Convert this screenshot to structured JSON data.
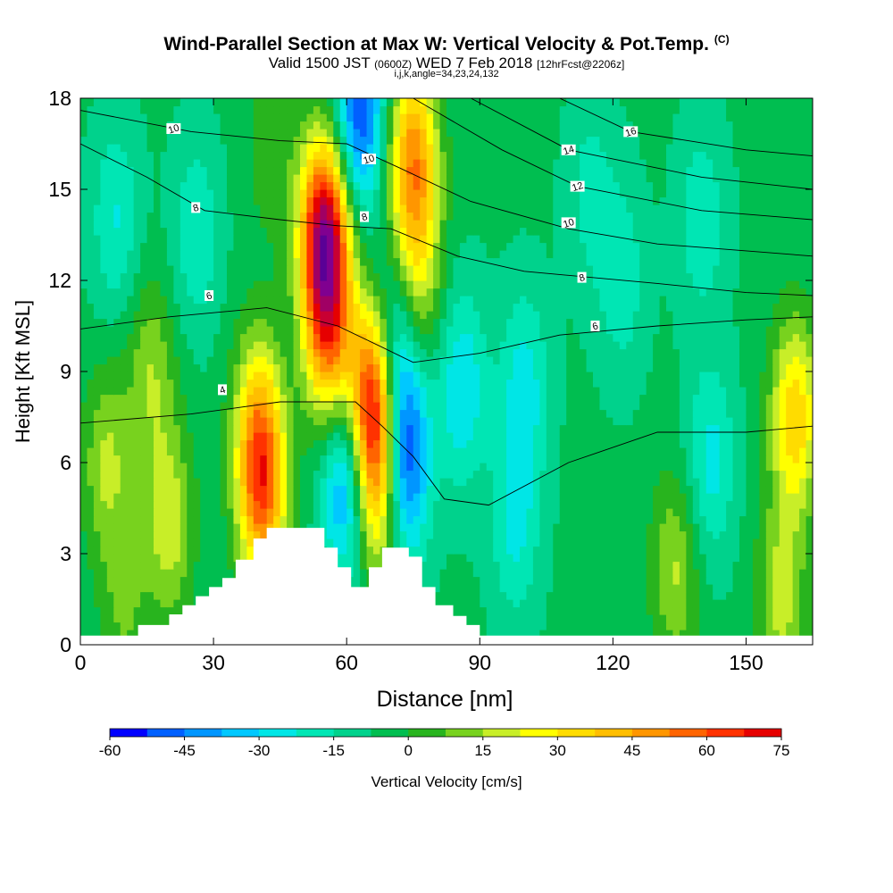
{
  "title": {
    "main": "Wind-Parallel Section at Max W: Vertical Velocity & Pot.Temp.",
    "corner": "(C)",
    "valid_prefix": "Valid 1500 JST",
    "valid_utc": "(0600Z)",
    "valid_date": "WED 7 Feb 2018",
    "fcst": "[12hrFcst@2206z]",
    "params": "i,j,k,angle=34,23,24,132"
  },
  "colors": {
    "scale": [
      "#0000ff",
      "#0060ff",
      "#0096ff",
      "#00c8ff",
      "#00e6e6",
      "#00e6b4",
      "#00d28c",
      "#00be50",
      "#28b41e",
      "#78d21e",
      "#c8ee28",
      "#ffff00",
      "#ffdc00",
      "#ffbe00",
      "#ff9600",
      "#ff6400",
      "#ff3200",
      "#e60000",
      "#c80032",
      "#a00064",
      "#800090",
      "#5a0096"
    ]
  },
  "chart_data": {
    "type": "heatmap",
    "xlabel": "Distance [nm]",
    "ylabel": "Height [Kft MSL]",
    "xlim": [
      0,
      165
    ],
    "ylim": [
      0,
      18
    ],
    "xticks": [
      0,
      30,
      60,
      90,
      120,
      150
    ],
    "yticks": [
      0,
      3,
      6,
      9,
      12,
      15,
      18
    ],
    "colorbar": {
      "label": "Vertical Velocity [cm/s]",
      "range": [
        -60,
        75
      ],
      "step": 7.5,
      "tick_labels": [
        "-60",
        "-45",
        "-30",
        "-15",
        "0",
        "15",
        "30",
        "45",
        "60",
        "75"
      ]
    },
    "terrain": [
      [
        0,
        0.3
      ],
      [
        13,
        0.3
      ],
      [
        13,
        0.65
      ],
      [
        20,
        0.65
      ],
      [
        20,
        1.0
      ],
      [
        23,
        1.0
      ],
      [
        23,
        1.3
      ],
      [
        26,
        1.3
      ],
      [
        26,
        1.6
      ],
      [
        29,
        1.6
      ],
      [
        29,
        1.9
      ],
      [
        32,
        1.9
      ],
      [
        32,
        2.2
      ],
      [
        35,
        2.2
      ],
      [
        35,
        2.8
      ],
      [
        39,
        2.8
      ],
      [
        39,
        3.5
      ],
      [
        42,
        3.5
      ],
      [
        42,
        3.85
      ],
      [
        55,
        3.85
      ],
      [
        55,
        3.2
      ],
      [
        58,
        3.2
      ],
      [
        58,
        2.55
      ],
      [
        61,
        2.55
      ],
      [
        61,
        1.9
      ],
      [
        65,
        1.9
      ],
      [
        65,
        2.55
      ],
      [
        68,
        2.55
      ],
      [
        68,
        3.2
      ],
      [
        74,
        3.2
      ],
      [
        74,
        2.9
      ],
      [
        77,
        2.9
      ],
      [
        77,
        1.9
      ],
      [
        80,
        1.9
      ],
      [
        80,
        1.3
      ],
      [
        84,
        1.3
      ],
      [
        84,
        0.95
      ],
      [
        87,
        0.95
      ],
      [
        87,
        0.65
      ],
      [
        90,
        0.65
      ],
      [
        90,
        0.3
      ],
      [
        165,
        0.3
      ]
    ],
    "w_centers": [
      {
        "x": 55,
        "y": 13.5,
        "w": 90
      },
      {
        "x": 56,
        "y": 10.0,
        "w": 48
      },
      {
        "x": 66,
        "y": 8.0,
        "w": 80
      },
      {
        "x": 67,
        "y": 5.0,
        "w": 38
      },
      {
        "x": 41,
        "y": 5.0,
        "w": 55
      },
      {
        "x": 40,
        "y": 7.5,
        "w": 32
      },
      {
        "x": 20,
        "y": 4.0,
        "w": 26
      },
      {
        "x": 6,
        "y": 6.0,
        "w": 22
      },
      {
        "x": 16,
        "y": 9.0,
        "w": 20
      },
      {
        "x": 43,
        "y": 16.5,
        "w": 12
      },
      {
        "x": 75,
        "y": 16.0,
        "w": 55
      },
      {
        "x": 76,
        "y": 12.0,
        "w": 26
      },
      {
        "x": 10,
        "y": 1.3,
        "w": 14
      },
      {
        "x": 158,
        "y": 1.5,
        "w": 24
      },
      {
        "x": 161,
        "y": 7.5,
        "w": 42
      },
      {
        "x": 134,
        "y": 2.5,
        "w": 22
      },
      {
        "x": 60,
        "y": 5.5,
        "w": -42
      },
      {
        "x": 73,
        "y": 6.0,
        "w": -48
      },
      {
        "x": 71,
        "y": 9.5,
        "w": -34
      },
      {
        "x": 63,
        "y": 17.5,
        "w": -46
      },
      {
        "x": 86,
        "y": 8.5,
        "w": -24
      },
      {
        "x": 100,
        "y": 8.5,
        "w": -20
      },
      {
        "x": 98,
        "y": 4.0,
        "w": -18
      },
      {
        "x": 142,
        "y": 6.0,
        "w": -20
      },
      {
        "x": 8,
        "y": 14.0,
        "w": -17
      },
      {
        "x": 26,
        "y": 13.5,
        "w": -16
      },
      {
        "x": 122,
        "y": 12.0,
        "w": -14
      },
      {
        "x": 140,
        "y": 14.0,
        "w": -15
      },
      {
        "x": 115,
        "y": 15.0,
        "w": -12
      }
    ],
    "theta_contours": [
      {
        "label": "4",
        "label_at": [
          32,
          8.4
        ],
        "points": [
          [
            0,
            7.3
          ],
          [
            25,
            7.6
          ],
          [
            45,
            8.0
          ],
          [
            62,
            8.0
          ],
          [
            68,
            7.2
          ],
          [
            75,
            6.2
          ],
          [
            82,
            4.8
          ],
          [
            92,
            4.6
          ],
          [
            110,
            6.0
          ],
          [
            130,
            7.0
          ],
          [
            150,
            7.0
          ],
          [
            165,
            7.2
          ]
        ]
      },
      {
        "label": "6",
        "label_at": [
          29,
          11.5
        ],
        "points": [
          [
            0,
            10.4
          ],
          [
            20,
            10.8
          ],
          [
            42,
            11.1
          ],
          [
            58,
            10.5
          ],
          [
            68,
            9.8
          ],
          [
            75,
            9.3
          ],
          [
            90,
            9.6
          ],
          [
            108,
            10.2
          ],
          [
            130,
            10.5
          ],
          [
            150,
            10.7
          ],
          [
            165,
            10.8
          ]
        ]
      },
      {
        "label": "6",
        "label_at": [
          116,
          10.5
        ],
        "points": []
      },
      {
        "label": "8",
        "label_at": [
          26,
          14.4
        ],
        "points": [
          [
            0,
            16.5
          ],
          [
            15,
            15.4
          ],
          [
            28,
            14.3
          ],
          [
            45,
            14.0
          ],
          [
            58,
            13.8
          ],
          [
            70,
            13.7
          ],
          [
            85,
            12.8
          ],
          [
            100,
            12.3
          ],
          [
            130,
            11.9
          ],
          [
            150,
            11.6
          ],
          [
            165,
            11.5
          ]
        ]
      },
      {
        "label": "8",
        "label_at": [
          64,
          14.1
        ],
        "points": []
      },
      {
        "label": "8",
        "label_at": [
          113,
          12.1
        ],
        "points": []
      },
      {
        "label": "10",
        "label_at": [
          21,
          17.0
        ],
        "points": [
          [
            0,
            17.6
          ],
          [
            25,
            16.9
          ],
          [
            45,
            16.6
          ],
          [
            60,
            16.5
          ],
          [
            72,
            15.7
          ],
          [
            88,
            14.6
          ],
          [
            110,
            13.7
          ],
          [
            130,
            13.2
          ],
          [
            165,
            12.8
          ]
        ]
      },
      {
        "label": "10",
        "label_at": [
          65,
          16.0
        ],
        "points": []
      },
      {
        "label": "10",
        "label_at": [
          110,
          13.9
        ],
        "points": []
      },
      {
        "label": "12",
        "label_at": [
          112,
          15.1
        ],
        "points": [
          [
            75,
            18.0
          ],
          [
            95,
            16.3
          ],
          [
            112,
            15.1
          ],
          [
            140,
            14.3
          ],
          [
            165,
            14.0
          ]
        ]
      },
      {
        "label": "14",
        "label_at": [
          110,
          16.3
        ],
        "points": [
          [
            88,
            18.0
          ],
          [
            110,
            16.3
          ],
          [
            140,
            15.4
          ],
          [
            165,
            15.0
          ]
        ]
      },
      {
        "label": "16",
        "label_at": [
          124,
          16.9
        ],
        "points": [
          [
            108,
            18.0
          ],
          [
            124,
            16.9
          ],
          [
            150,
            16.3
          ],
          [
            165,
            16.1
          ]
        ]
      }
    ]
  }
}
